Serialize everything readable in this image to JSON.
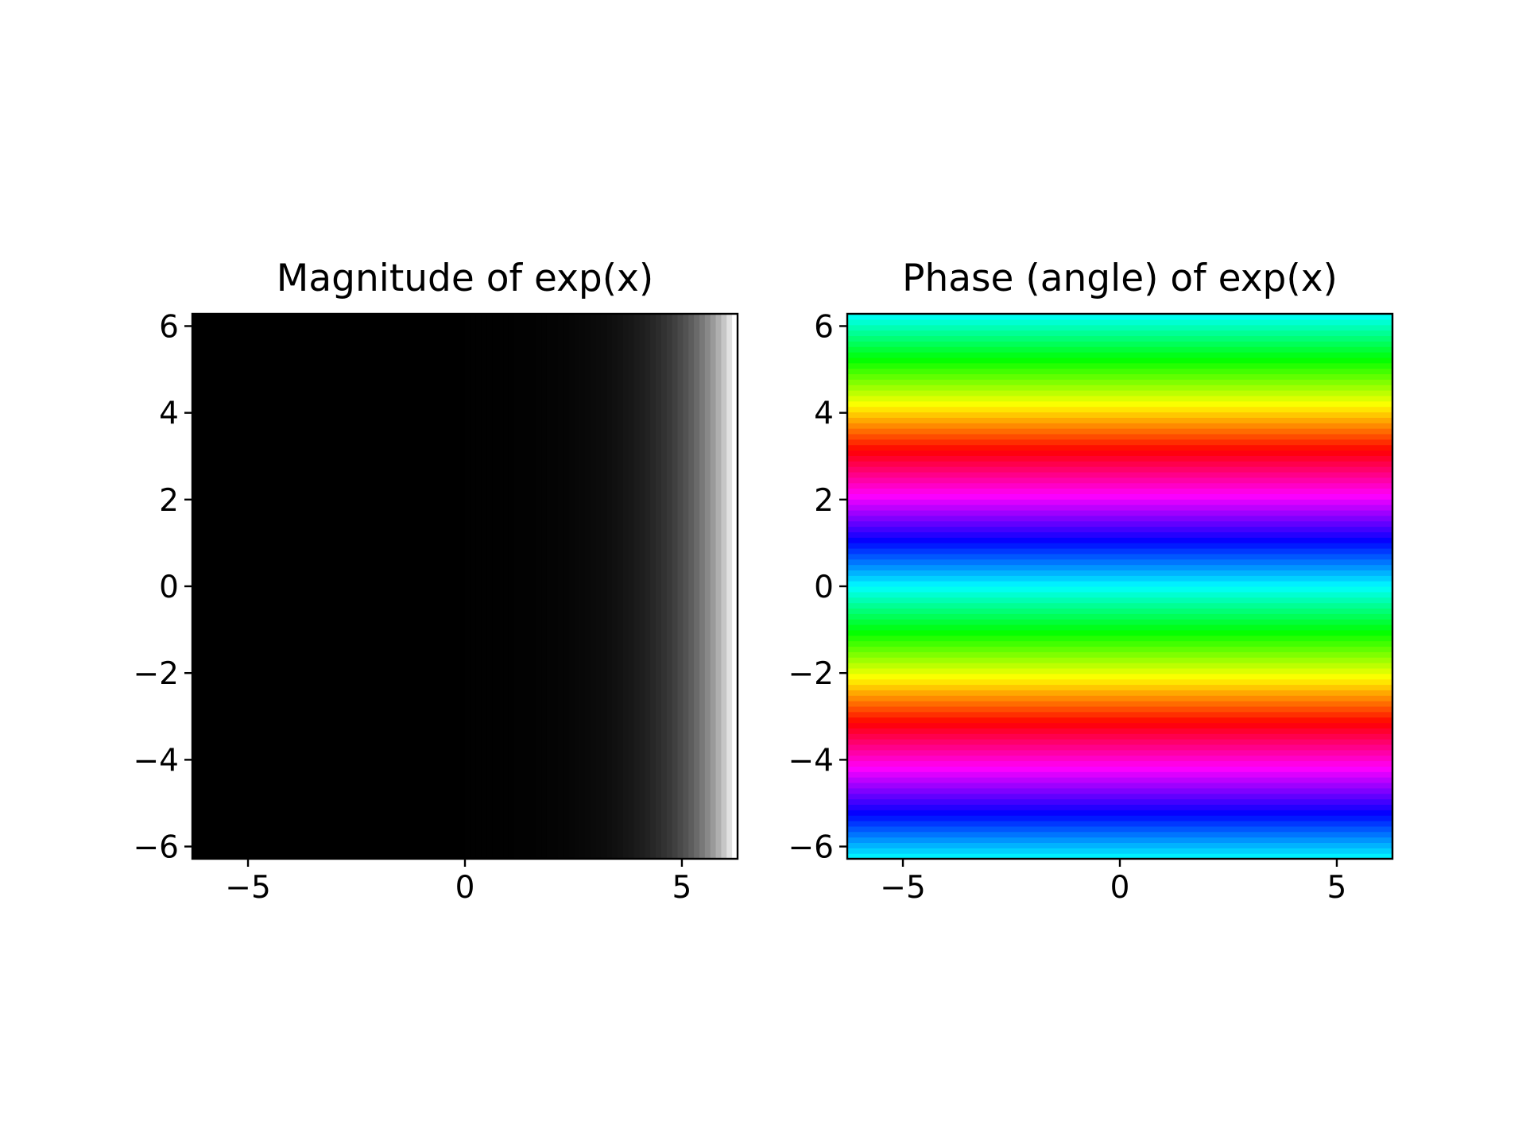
{
  "chart_data": [
    {
      "type": "heatmap",
      "title": "Magnitude of exp(x)",
      "xlabel": "",
      "ylabel": "",
      "xlim": [
        -6.283,
        6.283
      ],
      "ylim": [
        -6.283,
        6.283
      ],
      "xticks": [
        -5,
        0,
        5
      ],
      "xtick_labels": [
        "−5",
        "0",
        "5"
      ],
      "yticks": [
        -6,
        -4,
        -2,
        0,
        2,
        4,
        6
      ],
      "ytick_labels": [
        "−6",
        "−4",
        "−2",
        "0",
        "2",
        "4",
        "6"
      ],
      "function": "abs(exp(x + i*y))",
      "colormap": "gray",
      "grid": false,
      "legend": "none"
    },
    {
      "type": "heatmap",
      "title": "Phase (angle) of exp(x)",
      "xlabel": "",
      "ylabel": "",
      "xlim": [
        -6.283,
        6.283
      ],
      "ylim": [
        -6.283,
        6.283
      ],
      "xticks": [
        -5,
        0,
        5
      ],
      "xtick_labels": [
        "−5",
        "0",
        "5"
      ],
      "yticks": [
        -6,
        -4,
        -2,
        0,
        2,
        4,
        6
      ],
      "ytick_labels": [
        "−6",
        "−4",
        "−2",
        "0",
        "2",
        "4",
        "6"
      ],
      "function": "angle(exp(x + i*y))",
      "colormap": "hsv",
      "grid": false,
      "legend": "none"
    }
  ]
}
